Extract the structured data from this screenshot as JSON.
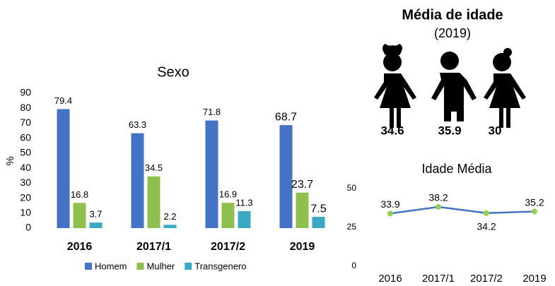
{
  "chart_data": [
    {
      "type": "bar",
      "title": "Sexo",
      "ylabel": "%",
      "categories": [
        "2016",
        "2017/1",
        "2017/2",
        "2019"
      ],
      "series": [
        {
          "name": "Homem",
          "color": "#4472c4",
          "values": [
            79.4,
            63.3,
            71.8,
            68.7
          ]
        },
        {
          "name": "Mulher",
          "color": "#8fc04f",
          "values": [
            16.8,
            34.5,
            16.9,
            23.7
          ]
        },
        {
          "name": "Transgenero",
          "color": "#3aaac3",
          "values": [
            3.7,
            2.2,
            11.3,
            7.5
          ]
        }
      ],
      "ylim": [
        0,
        90
      ],
      "yticks": [
        0,
        10,
        20,
        30,
        40,
        50,
        60,
        70,
        80,
        90
      ],
      "legend": "bottom"
    },
    {
      "type": "pictograph",
      "title": "Média de idade",
      "subtitle": "(2019)",
      "values": [
        34.6,
        35.9,
        30
      ]
    },
    {
      "type": "line",
      "title": "Idade Média",
      "categories": [
        "2016",
        "2017/1",
        "2017/2",
        "2019"
      ],
      "values": [
        33.9,
        38.2,
        34.2,
        35.2
      ],
      "color": "#4472c4",
      "marker_color": "#92d050",
      "ylim": [
        0,
        50
      ],
      "yticks": [
        0,
        25,
        50
      ]
    }
  ]
}
